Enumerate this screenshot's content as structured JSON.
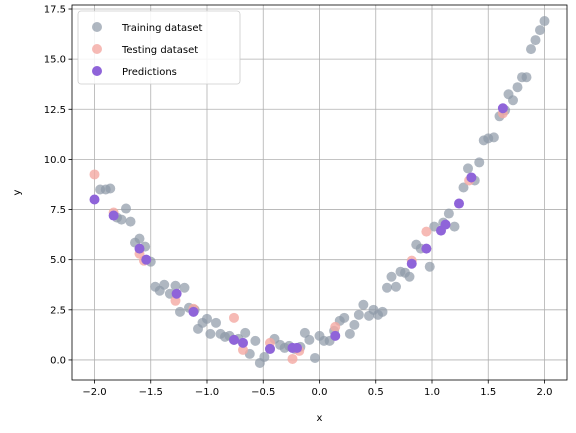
{
  "chart_data": {
    "type": "scatter",
    "xlabel": "x",
    "ylabel": "y",
    "xlim": [
      -2.2,
      2.2
    ],
    "ylim": [
      -1.0,
      17.7
    ],
    "xticks": [
      -2.0,
      -1.5,
      -1.0,
      -0.5,
      0.0,
      0.5,
      1.0,
      1.5,
      2.0
    ],
    "yticks": [
      0.0,
      2.5,
      5.0,
      7.5,
      10.0,
      12.5,
      15.0,
      17.5
    ],
    "xtick_labels": [
      "−2.0",
      "−1.5",
      "−1.0",
      "−0.5",
      "0.0",
      "0.5",
      "1.0",
      "1.5",
      "2.0"
    ],
    "ytick_labels": [
      "0.0",
      "2.5",
      "5.0",
      "7.5",
      "10.0",
      "12.5",
      "15.0",
      "17.5"
    ],
    "grid": true,
    "legend_position": "upper-left",
    "series": [
      {
        "name": "Training dataset",
        "color": "#8d99a6",
        "points": [
          [
            -1.95,
            8.5
          ],
          [
            -1.9,
            8.5
          ],
          [
            -1.86,
            8.55
          ],
          [
            -1.8,
            7.1
          ],
          [
            -1.76,
            7.0
          ],
          [
            -1.72,
            7.55
          ],
          [
            -1.68,
            6.9
          ],
          [
            -1.64,
            5.85
          ],
          [
            -1.6,
            6.05
          ],
          [
            -1.55,
            5.65
          ],
          [
            -1.5,
            4.9
          ],
          [
            -1.46,
            3.65
          ],
          [
            -1.42,
            3.45
          ],
          [
            -1.38,
            3.75
          ],
          [
            -1.33,
            3.3
          ],
          [
            -1.28,
            3.7
          ],
          [
            -1.24,
            2.4
          ],
          [
            -1.2,
            3.6
          ],
          [
            -1.16,
            2.6
          ],
          [
            -1.11,
            2.5
          ],
          [
            -1.08,
            1.55
          ],
          [
            -1.04,
            1.85
          ],
          [
            -1.0,
            2.05
          ],
          [
            -0.97,
            1.3
          ],
          [
            -0.92,
            1.85
          ],
          [
            -0.88,
            1.3
          ],
          [
            -0.84,
            1.15
          ],
          [
            -0.8,
            1.2
          ],
          [
            -0.76,
            1.0
          ],
          [
            -0.72,
            1.05
          ],
          [
            -0.66,
            1.35
          ],
          [
            -0.62,
            0.3
          ],
          [
            -0.57,
            0.95
          ],
          [
            -0.53,
            -0.15
          ],
          [
            -0.49,
            0.15
          ],
          [
            -0.44,
            0.55
          ],
          [
            -0.4,
            1.05
          ],
          [
            -0.35,
            0.75
          ],
          [
            -0.31,
            0.6
          ],
          [
            -0.27,
            0.7
          ],
          [
            -0.22,
            0.55
          ],
          [
            -0.17,
            0.65
          ],
          [
            -0.13,
            1.35
          ],
          [
            -0.09,
            1.0
          ],
          [
            -0.04,
            0.1
          ],
          [
            0.0,
            1.2
          ],
          [
            0.04,
            0.95
          ],
          [
            0.09,
            0.95
          ],
          [
            0.13,
            1.45
          ],
          [
            0.18,
            1.95
          ],
          [
            0.22,
            2.1
          ],
          [
            0.27,
            1.3
          ],
          [
            0.31,
            1.75
          ],
          [
            0.35,
            2.25
          ],
          [
            0.39,
            2.75
          ],
          [
            0.44,
            2.2
          ],
          [
            0.48,
            2.5
          ],
          [
            0.52,
            2.25
          ],
          [
            0.56,
            2.4
          ],
          [
            0.6,
            3.6
          ],
          [
            0.64,
            4.15
          ],
          [
            0.68,
            3.65
          ],
          [
            0.72,
            4.4
          ],
          [
            0.76,
            4.35
          ],
          [
            0.8,
            4.15
          ],
          [
            0.86,
            5.75
          ],
          [
            0.9,
            5.55
          ],
          [
            0.98,
            4.65
          ],
          [
            1.02,
            6.65
          ],
          [
            1.1,
            6.85
          ],
          [
            1.15,
            7.3
          ],
          [
            1.2,
            6.65
          ],
          [
            1.28,
            8.6
          ],
          [
            1.32,
            9.55
          ],
          [
            1.38,
            8.95
          ],
          [
            1.42,
            9.85
          ],
          [
            1.46,
            10.95
          ],
          [
            1.5,
            11.05
          ],
          [
            1.55,
            11.1
          ],
          [
            1.6,
            12.15
          ],
          [
            1.65,
            12.45
          ],
          [
            1.68,
            13.25
          ],
          [
            1.72,
            12.95
          ],
          [
            1.76,
            13.6
          ],
          [
            1.8,
            14.1
          ],
          [
            1.84,
            14.1
          ],
          [
            1.88,
            15.5
          ],
          [
            1.92,
            15.95
          ],
          [
            1.96,
            16.45
          ],
          [
            2.0,
            16.9
          ]
        ]
      },
      {
        "name": "Testing dataset",
        "color": "#f4a9a2",
        "points": [
          [
            -2.0,
            9.25
          ],
          [
            -1.83,
            7.35
          ],
          [
            -1.6,
            5.3
          ],
          [
            -1.56,
            4.95
          ],
          [
            -1.28,
            2.95
          ],
          [
            -1.12,
            2.55
          ],
          [
            -0.76,
            2.1
          ],
          [
            -0.68,
            0.5
          ],
          [
            -0.44,
            0.85
          ],
          [
            -0.24,
            0.05
          ],
          [
            -0.18,
            0.45
          ],
          [
            0.14,
            1.65
          ],
          [
            0.82,
            4.95
          ],
          [
            0.95,
            6.4
          ],
          [
            1.33,
            8.95
          ],
          [
            1.63,
            12.3
          ]
        ]
      },
      {
        "name": "Predictions",
        "color": "#8f64d9",
        "points": [
          [
            -2.0,
            8.0
          ],
          [
            -1.83,
            7.2
          ],
          [
            -1.6,
            5.55
          ],
          [
            -1.54,
            5.0
          ],
          [
            -1.27,
            3.3
          ],
          [
            -1.12,
            2.4
          ],
          [
            -0.76,
            1.0
          ],
          [
            -0.68,
            0.85
          ],
          [
            -0.44,
            0.55
          ],
          [
            -0.24,
            0.6
          ],
          [
            -0.2,
            0.6
          ],
          [
            0.14,
            1.2
          ],
          [
            0.82,
            4.8
          ],
          [
            0.95,
            5.55
          ],
          [
            1.08,
            6.45
          ],
          [
            1.12,
            6.75
          ],
          [
            1.24,
            7.8
          ],
          [
            1.35,
            9.1
          ],
          [
            1.63,
            12.55
          ]
        ]
      }
    ]
  }
}
